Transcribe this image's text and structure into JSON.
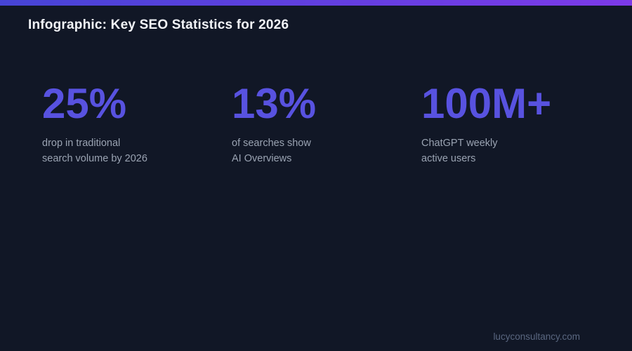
{
  "header": {
    "title": "Infographic: Key SEO Statistics for 2026"
  },
  "stats": [
    {
      "value": "25%",
      "label_line1": "drop in traditional",
      "label_line2": "search volume by 2026"
    },
    {
      "value": "13%",
      "label_line1": "of searches show",
      "label_line2": "AI Overviews"
    },
    {
      "value": "100M+",
      "label_line1": "ChatGPT weekly",
      "label_line2": "active users"
    }
  ],
  "footer": {
    "website": "lucyconsultancy.com"
  },
  "colors": {
    "background": "#111726",
    "accent_stat": "#5852e0",
    "gradient_start": "#4644d6",
    "gradient_end": "#7d3ae8",
    "title_text": "#f2f4f8",
    "caption_text": "#9aa3b2",
    "footer_text": "#5a6780"
  },
  "chart_data": {
    "type": "table",
    "title": "Infographic: Key SEO Statistics for 2026",
    "stats": [
      {
        "value": "25%",
        "numeric": 25,
        "unit": "percent",
        "label": "drop in traditional search volume by 2026"
      },
      {
        "value": "13%",
        "numeric": 13,
        "unit": "percent",
        "label": "of searches show AI Overviews"
      },
      {
        "value": "100M+",
        "numeric": 100000000,
        "unit": "users",
        "label": "ChatGPT weekly active users"
      }
    ],
    "legend": false,
    "grid": false
  }
}
